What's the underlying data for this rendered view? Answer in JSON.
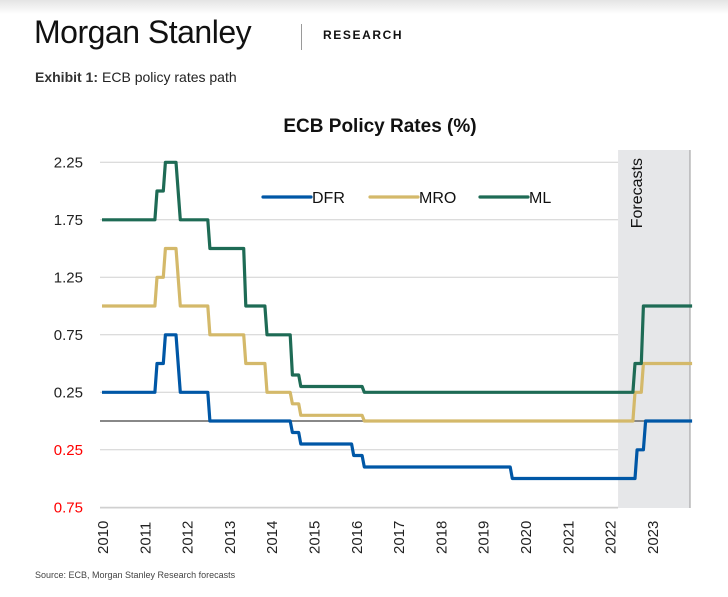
{
  "header": {
    "brand": "Morgan Stanley",
    "section": "RESEARCH"
  },
  "exhibit": {
    "label": "Exhibit 1:",
    "caption": "ECB policy rates path"
  },
  "footer": {
    "source": "Source: ECB, Morgan Stanley Research forecasts"
  },
  "colors": {
    "DFR": "#0057a6",
    "MRO": "#d4b96a",
    "ML": "#1e6b55",
    "zero_line": "#888888",
    "grid": "#d0d0d0",
    "forecast_band": "#e6e7e9",
    "negative_tick": "#ff0000"
  },
  "chart_data": {
    "type": "line",
    "title": "ECB Policy Rates (%)",
    "xlabel": "",
    "ylabel": "",
    "xlim": [
      2010,
      2023.95
    ],
    "ylim": [
      -0.75,
      2.25
    ],
    "grid": true,
    "legend_position": "top-center",
    "yticks": [
      {
        "value": 2.25,
        "label": "2.25"
      },
      {
        "value": 1.75,
        "label": "1.75"
      },
      {
        "value": 1.25,
        "label": "1.25"
      },
      {
        "value": 0.75,
        "label": "0.75"
      },
      {
        "value": 0.25,
        "label": "0.25"
      },
      {
        "value": -0.25,
        "label": "0.25"
      },
      {
        "value": -0.75,
        "label": "0.75"
      }
    ],
    "xticks": [
      "2010",
      "2011",
      "2012",
      "2013",
      "2014",
      "2015",
      "2016",
      "2017",
      "2018",
      "2019",
      "2020",
      "2021",
      "2022",
      "2023"
    ],
    "forecast_region": {
      "start": 2022.2,
      "end": 2023.95,
      "label": "Forecasts"
    },
    "series": [
      {
        "name": "DFR",
        "step_points": [
          [
            2010.0,
            0.25
          ],
          [
            2011.25,
            0.25
          ],
          [
            2011.3,
            0.5
          ],
          [
            2011.45,
            0.5
          ],
          [
            2011.5,
            0.75
          ],
          [
            2011.75,
            0.75
          ],
          [
            2011.85,
            0.25
          ],
          [
            2012.5,
            0.25
          ],
          [
            2012.55,
            0.0
          ],
          [
            2014.45,
            0.0
          ],
          [
            2014.5,
            -0.1
          ],
          [
            2014.65,
            -0.1
          ],
          [
            2014.7,
            -0.2
          ],
          [
            2015.9,
            -0.2
          ],
          [
            2015.95,
            -0.3
          ],
          [
            2016.15,
            -0.3
          ],
          [
            2016.2,
            -0.4
          ],
          [
            2019.65,
            -0.4
          ],
          [
            2019.7,
            -0.5
          ],
          [
            2022.6,
            -0.5
          ],
          [
            2022.65,
            -0.25
          ],
          [
            2022.8,
            -0.25
          ],
          [
            2022.85,
            0.0
          ],
          [
            2023.95,
            0.0
          ]
        ]
      },
      {
        "name": "MRO",
        "step_points": [
          [
            2010.0,
            1.0
          ],
          [
            2011.25,
            1.0
          ],
          [
            2011.3,
            1.25
          ],
          [
            2011.45,
            1.25
          ],
          [
            2011.5,
            1.5
          ],
          [
            2011.75,
            1.5
          ],
          [
            2011.85,
            1.0
          ],
          [
            2012.5,
            1.0
          ],
          [
            2012.55,
            0.75
          ],
          [
            2013.35,
            0.75
          ],
          [
            2013.4,
            0.5
          ],
          [
            2013.85,
            0.5
          ],
          [
            2013.9,
            0.25
          ],
          [
            2014.45,
            0.25
          ],
          [
            2014.5,
            0.15
          ],
          [
            2014.65,
            0.15
          ],
          [
            2014.7,
            0.05
          ],
          [
            2016.15,
            0.05
          ],
          [
            2016.2,
            0.0
          ],
          [
            2022.55,
            0.0
          ],
          [
            2022.6,
            0.25
          ],
          [
            2022.75,
            0.25
          ],
          [
            2022.8,
            0.5
          ],
          [
            2023.95,
            0.5
          ]
        ]
      },
      {
        "name": "ML",
        "step_points": [
          [
            2010.0,
            1.75
          ],
          [
            2011.25,
            1.75
          ],
          [
            2011.3,
            2.0
          ],
          [
            2011.45,
            2.0
          ],
          [
            2011.5,
            2.25
          ],
          [
            2011.75,
            2.25
          ],
          [
            2011.85,
            1.75
          ],
          [
            2012.5,
            1.75
          ],
          [
            2012.55,
            1.5
          ],
          [
            2013.35,
            1.5
          ],
          [
            2013.4,
            1.0
          ],
          [
            2013.85,
            1.0
          ],
          [
            2013.9,
            0.75
          ],
          [
            2014.45,
            0.75
          ],
          [
            2014.5,
            0.4
          ],
          [
            2014.65,
            0.4
          ],
          [
            2014.7,
            0.3
          ],
          [
            2016.15,
            0.3
          ],
          [
            2016.2,
            0.25
          ],
          [
            2022.55,
            0.25
          ],
          [
            2022.6,
            0.5
          ],
          [
            2022.75,
            0.5
          ],
          [
            2022.8,
            1.0
          ],
          [
            2023.95,
            1.0
          ]
        ]
      }
    ]
  }
}
